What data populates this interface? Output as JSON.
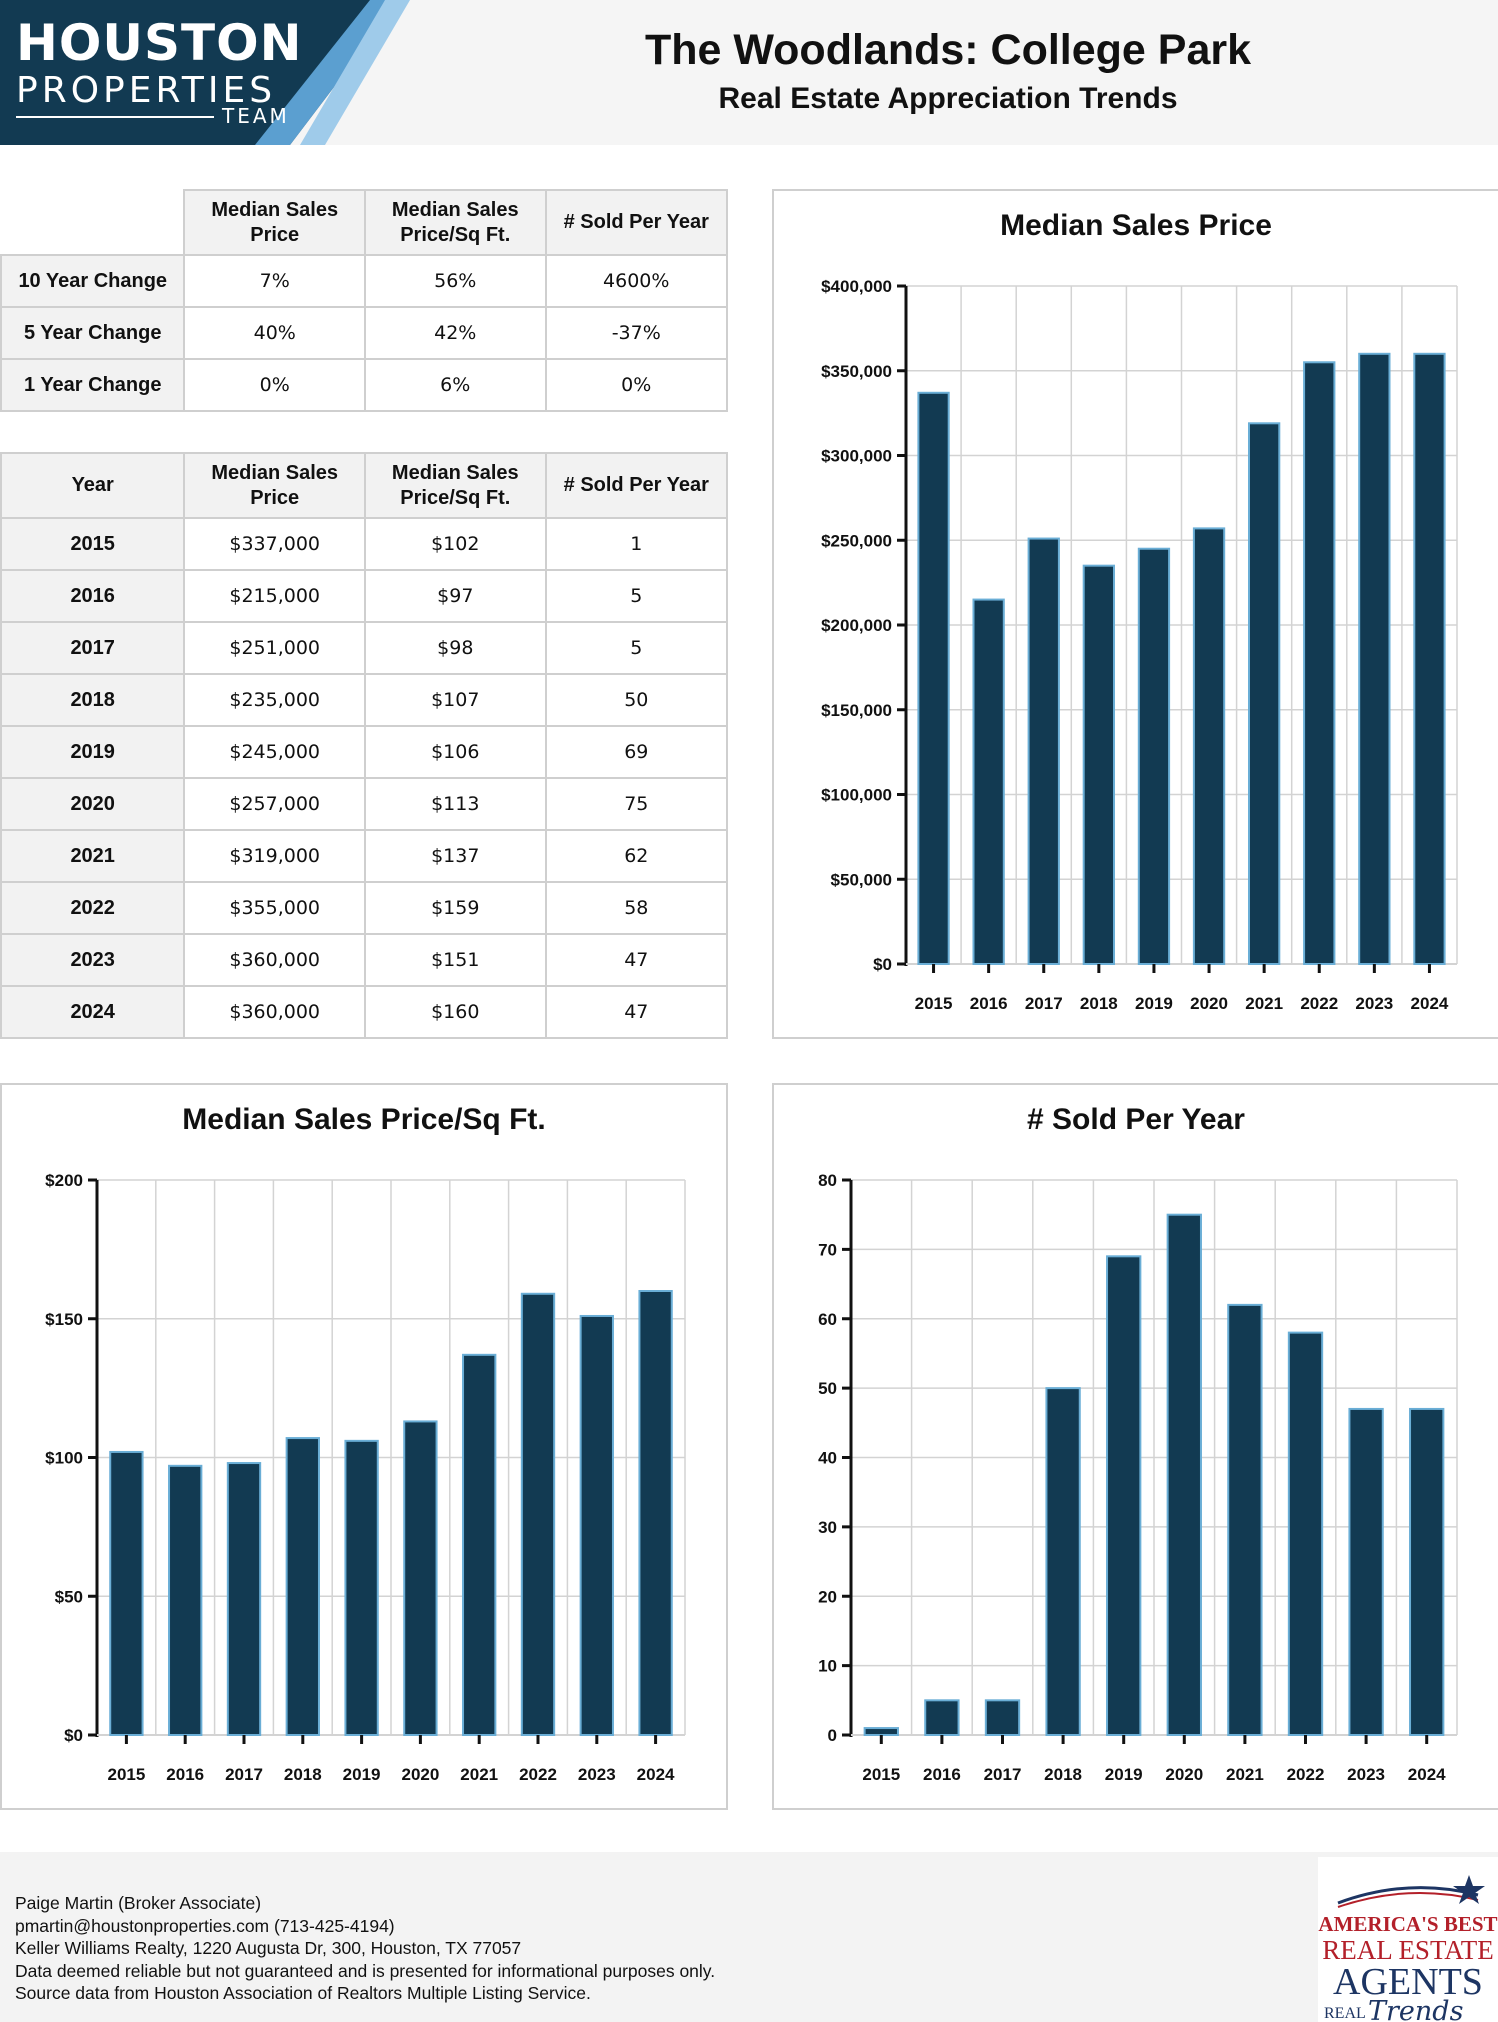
{
  "header": {
    "logo_line1": "HOUSTON",
    "logo_line2": "PROPERTIES",
    "logo_line3": "TEAM",
    "title": "The Woodlands: College Park",
    "subtitle": "Real Estate Appreciation Trends",
    "colors": {
      "navy": "#123a52",
      "light_blue": "#9fcbea",
      "mid_blue": "#5b9fd0"
    }
  },
  "change_table": {
    "headers": [
      "",
      "Median Sales Price",
      "Median Sales Price/Sq Ft.",
      "# Sold Per Year"
    ],
    "rows": [
      [
        "10 Year Change",
        "7%",
        "56%",
        "4600%"
      ],
      [
        "5 Year Change",
        "40%",
        "42%",
        "-37%"
      ],
      [
        "1 Year Change",
        "0%",
        "6%",
        "0%"
      ]
    ]
  },
  "yearly_table": {
    "headers": [
      "Year",
      "Median Sales Price",
      "Median Sales Price/Sq Ft.",
      "# Sold Per Year"
    ],
    "rows": [
      [
        "2015",
        "$337,000",
        "$102",
        "1"
      ],
      [
        "2016",
        "$215,000",
        "$97",
        "5"
      ],
      [
        "2017",
        "$251,000",
        "$98",
        "5"
      ],
      [
        "2018",
        "$235,000",
        "$107",
        "50"
      ],
      [
        "2019",
        "$245,000",
        "$106",
        "69"
      ],
      [
        "2020",
        "$257,000",
        "$113",
        "75"
      ],
      [
        "2021",
        "$319,000",
        "$137",
        "62"
      ],
      [
        "2022",
        "$355,000",
        "$159",
        "58"
      ],
      [
        "2023",
        "$360,000",
        "$151",
        "47"
      ],
      [
        "2024",
        "$360,000",
        "$160",
        "47"
      ]
    ]
  },
  "chart_data": [
    {
      "id": "price",
      "type": "bar",
      "title": "Median Sales Price",
      "categories": [
        "2015",
        "2016",
        "2017",
        "2018",
        "2019",
        "2020",
        "2021",
        "2022",
        "2023",
        "2024"
      ],
      "values": [
        337000,
        215000,
        251000,
        235000,
        245000,
        257000,
        319000,
        355000,
        360000,
        360000
      ],
      "ylim": [
        0,
        400000
      ],
      "yticks": [
        0,
        50000,
        100000,
        150000,
        200000,
        250000,
        300000,
        350000,
        400000
      ],
      "ytick_labels": [
        "$0",
        "$50,000",
        "$100,000",
        "$150,000",
        "$200,000",
        "$250,000",
        "$300,000",
        "$350,000",
        "$400,000"
      ],
      "grid": true,
      "bar_color": "#123a52",
      "bar_edge_color": "#6aaed6"
    },
    {
      "id": "psf",
      "type": "bar",
      "title": "Median Sales Price/Sq Ft.",
      "categories": [
        "2015",
        "2016",
        "2017",
        "2018",
        "2019",
        "2020",
        "2021",
        "2022",
        "2023",
        "2024"
      ],
      "values": [
        102,
        97,
        98,
        107,
        106,
        113,
        137,
        159,
        151,
        160
      ],
      "ylim": [
        0,
        200
      ],
      "yticks": [
        0,
        50,
        100,
        150,
        200
      ],
      "ytick_labels": [
        "$0",
        "$50",
        "$100",
        "$150",
        "$200"
      ],
      "grid": true,
      "bar_color": "#123a52",
      "bar_edge_color": "#6aaed6"
    },
    {
      "id": "sold",
      "type": "bar",
      "title": "# Sold Per Year",
      "categories": [
        "2015",
        "2016",
        "2017",
        "2018",
        "2019",
        "2020",
        "2021",
        "2022",
        "2023",
        "2024"
      ],
      "values": [
        1,
        5,
        5,
        50,
        69,
        75,
        62,
        58,
        47,
        47
      ],
      "ylim": [
        0,
        80
      ],
      "yticks": [
        0,
        10,
        20,
        30,
        40,
        50,
        60,
        70,
        80
      ],
      "ytick_labels": [
        "0",
        "10",
        "20",
        "30",
        "40",
        "50",
        "60",
        "70",
        "80"
      ],
      "grid": true,
      "bar_color": "#123a52",
      "bar_edge_color": "#6aaed6"
    }
  ],
  "footer": {
    "lines": [
      "Paige Martin (Broker Associate)",
      "pmartin@houstonproperties.com (713-425-4194)",
      "Keller Williams Realty, 1220 Augusta Dr, 300, Houston, TX 77057",
      "Data deemed reliable but not guaranteed and is presented for informational purposes only.",
      "Source data from Houston Association of Realtors Multiple Listing Service."
    ],
    "badge_line1": "AMERICA'S BEST",
    "badge_line2": "REAL ESTATE",
    "badge_line3": "AGENTS",
    "badge_line4": "REAL",
    "badge_line5": "Trends",
    "badge_colors": {
      "red": "#b3202a",
      "navy": "#1d3563"
    }
  }
}
